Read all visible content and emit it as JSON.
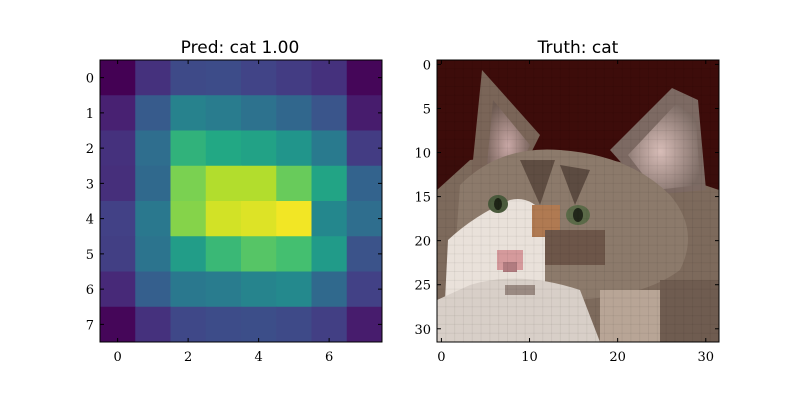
{
  "chart_data": [
    {
      "type": "heatmap",
      "title": "Pred: cat 1.00",
      "colormap": "viridis",
      "xlim": [
        -0.5,
        7.5
      ],
      "ylim": [
        7.5,
        -0.5
      ],
      "xticks": [
        0,
        2,
        4,
        6
      ],
      "yticks": [
        0,
        1,
        2,
        3,
        4,
        5,
        6,
        7
      ],
      "values": [
        [
          0.0,
          0.18,
          0.28,
          0.29,
          0.25,
          0.22,
          0.18,
          0.02
        ],
        [
          0.12,
          0.36,
          0.55,
          0.52,
          0.47,
          0.42,
          0.33,
          0.1
        ],
        [
          0.18,
          0.45,
          0.78,
          0.75,
          0.72,
          0.65,
          0.51,
          0.22
        ],
        [
          0.17,
          0.43,
          0.88,
          0.93,
          0.93,
          0.86,
          0.73,
          0.4
        ],
        [
          0.24,
          0.5,
          0.89,
          0.96,
          0.97,
          0.99,
          0.58,
          0.45
        ],
        [
          0.23,
          0.48,
          0.69,
          0.8,
          0.84,
          0.82,
          0.68,
          0.32
        ],
        [
          0.15,
          0.38,
          0.5,
          0.52,
          0.56,
          0.59,
          0.43,
          0.24
        ],
        [
          0.02,
          0.18,
          0.27,
          0.29,
          0.3,
          0.28,
          0.23,
          0.1
        ]
      ]
    },
    {
      "type": "heatmap",
      "title": "Truth: cat",
      "xlim": [
        -0.5,
        31.5
      ],
      "ylim": [
        31.5,
        -0.5
      ],
      "xticks": [
        0,
        10,
        20,
        30
      ],
      "yticks": [
        0,
        5,
        10,
        15,
        20,
        25,
        30
      ]
    }
  ]
}
